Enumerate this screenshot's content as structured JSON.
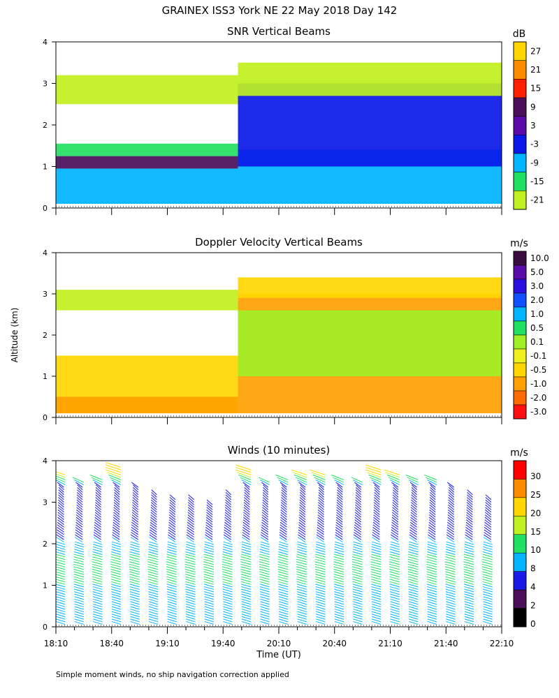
{
  "figure_title": "GRAINEX ISS3 York NE  22 May 2018 Day 142",
  "shared": {
    "ylabel": "Altitude (km)",
    "xlabel": "Time (UT)",
    "x_ticks": [
      "18:10",
      "18:40",
      "19:10",
      "19:40",
      "20:10",
      "20:40",
      "21:10",
      "21:40",
      "22:10"
    ],
    "footnote": "Simple moment winds, no ship navigation correction applied"
  },
  "chart_data": [
    {
      "type": "heatmap",
      "title": "SNR Vertical Beams",
      "xlabel": "Time (UT)",
      "ylabel": "Altitude (km)",
      "xlim": [
        "18:10",
        "22:10"
      ],
      "ylim": [
        0,
        4
      ],
      "y_ticks": [
        0,
        1,
        2,
        3,
        4
      ],
      "colorbar": {
        "unit": "dB",
        "levels": [
          "27",
          "21",
          "15",
          "9",
          "3",
          "-3",
          "-9",
          "-15",
          "-21"
        ],
        "colors": [
          "#ffd600",
          "#ff8c00",
          "#ff2000",
          "#4a0e5a",
          "#5a08a8",
          "#0a18e8",
          "#00b4ff",
          "#22e060",
          "#c0f020"
        ]
      },
      "layers": [
        {
          "time_start": "18:10",
          "time_end": "19:48",
          "alt_bottom": 0.1,
          "alt_top": 0.95,
          "color": "#00b4ff"
        },
        {
          "time_start": "18:10",
          "time_end": "19:48",
          "alt_bottom": 0.95,
          "alt_top": 1.25,
          "color": "#4a0e5a"
        },
        {
          "time_start": "18:10",
          "time_end": "19:48",
          "alt_bottom": 1.25,
          "alt_top": 1.55,
          "color": "#22e060"
        },
        {
          "time_start": "18:10",
          "time_end": "19:48",
          "alt_bottom": 2.5,
          "alt_top": 3.2,
          "color": "#c0f020"
        },
        {
          "time_start": "19:48",
          "time_end": "22:10",
          "alt_bottom": 0.1,
          "alt_top": 1.4,
          "color": "#00b4ff"
        },
        {
          "time_start": "19:48",
          "time_end": "22:10",
          "alt_bottom": 1.0,
          "alt_top": 3.0,
          "color": "#0a18e8"
        },
        {
          "time_start": "19:48",
          "time_end": "22:10",
          "alt_bottom": 2.7,
          "alt_top": 3.5,
          "color": "#c0f020"
        }
      ]
    },
    {
      "type": "heatmap",
      "title": "Doppler Velocity Vertical Beams",
      "xlabel": "Time (UT)",
      "ylabel": "Altitude (km)",
      "xlim": [
        "18:10",
        "22:10"
      ],
      "ylim": [
        0,
        4
      ],
      "y_ticks": [
        0,
        1,
        2,
        3,
        4
      ],
      "colorbar": {
        "unit": "m/s",
        "levels": [
          "10.0",
          "5.0",
          "3.0",
          "2.0",
          "1.0",
          "0.5",
          "0.1",
          "-0.1",
          "-0.5",
          "-1.0",
          "-2.0",
          "-3.0"
        ],
        "colors": [
          "#3a0a3e",
          "#5a0aa8",
          "#2a10e0",
          "#1050ff",
          "#00b4ff",
          "#22e060",
          "#a0f028",
          "#f0f020",
          "#ffd600",
          "#ffa000",
          "#ff6a00",
          "#ff1010"
        ]
      },
      "layers": [
        {
          "time_start": "18:10",
          "time_end": "19:48",
          "alt_bottom": 0.1,
          "alt_top": 1.5,
          "color": "#ffd600"
        },
        {
          "time_start": "18:10",
          "time_end": "19:48",
          "alt_bottom": 0.1,
          "alt_top": 0.5,
          "color": "#ffa000"
        },
        {
          "time_start": "18:10",
          "time_end": "19:48",
          "alt_bottom": 2.6,
          "alt_top": 3.1,
          "color": "#c0f020"
        },
        {
          "time_start": "19:48",
          "time_end": "22:10",
          "alt_bottom": 0.1,
          "alt_top": 3.0,
          "color": "#ffa000"
        },
        {
          "time_start": "19:48",
          "time_end": "22:10",
          "alt_bottom": 1.0,
          "alt_top": 2.6,
          "color": "#a0f028"
        },
        {
          "time_start": "19:48",
          "time_end": "22:10",
          "alt_bottom": 2.9,
          "alt_top": 3.4,
          "color": "#ffd600"
        }
      ]
    },
    {
      "type": "scatter",
      "subtype": "wind_barbs",
      "title": "Winds (10 minutes)",
      "xlabel": "Time (UT)",
      "ylabel": "Altitude (km)",
      "xlim": [
        "18:10",
        "22:10"
      ],
      "ylim": [
        0,
        4
      ],
      "y_ticks": [
        0,
        1,
        2,
        3,
        4
      ],
      "colorbar": {
        "unit": "m/s",
        "levels": [
          "30",
          "25",
          "20",
          "15",
          "10",
          "8",
          "4",
          "2",
          "0"
        ],
        "colors": [
          "#ff0000",
          "#ff8c00",
          "#ffd600",
          "#c0f020",
          "#22e060",
          "#00b4ff",
          "#1a1ae8",
          "#4a0e5a",
          "#000000"
        ]
      },
      "profile_times": [
        "18:15",
        "18:25",
        "18:35",
        "18:45",
        "18:55",
        "19:05",
        "19:15",
        "19:25",
        "19:35",
        "19:45",
        "19:55",
        "20:05",
        "20:15",
        "20:25",
        "20:35",
        "20:45",
        "20:55",
        "21:05",
        "21:15",
        "21:25",
        "21:35",
        "21:45",
        "21:55",
        "22:05"
      ],
      "profile_tops_km": [
        3.7,
        3.5,
        3.6,
        3.9,
        3.4,
        3.2,
        3.1,
        3.1,
        3.0,
        3.2,
        3.8,
        3.5,
        3.6,
        3.7,
        3.7,
        3.6,
        3.5,
        3.8,
        3.7,
        3.6,
        3.6,
        3.4,
        3.2,
        3.1
      ],
      "speed_profile": [
        {
          "alt_km": 0.5,
          "speed_ms": 9
        },
        {
          "alt_km": 1.5,
          "speed_ms": 11
        },
        {
          "alt_km": 2.5,
          "speed_ms": 6
        },
        {
          "alt_km": 3.3,
          "speed_ms": 4
        },
        {
          "alt_km": 3.7,
          "speed_ms": 22
        }
      ]
    }
  ]
}
